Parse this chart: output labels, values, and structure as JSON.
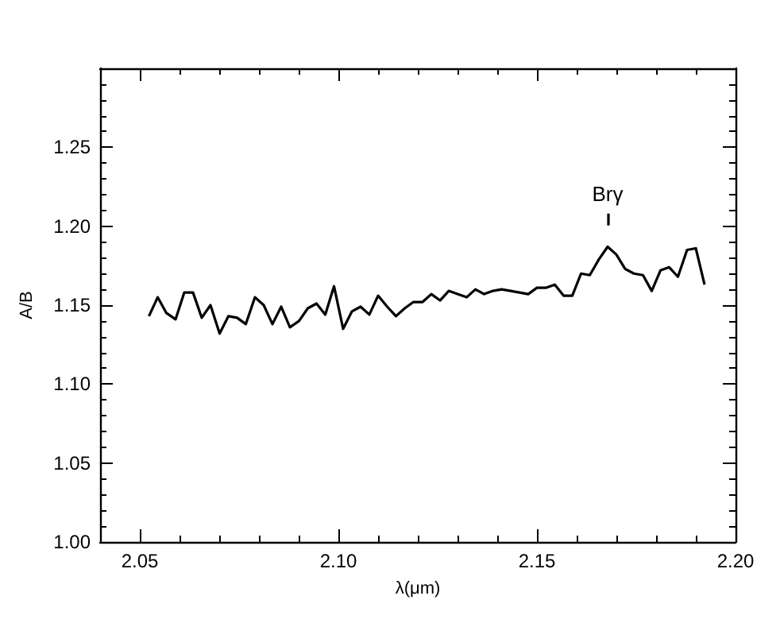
{
  "chart_data": {
    "type": "line",
    "xlabel": "λ(μm)",
    "ylabel": "A/B",
    "xlim": [
      2.04,
      2.2
    ],
    "ylim": [
      1.0,
      1.3
    ],
    "xticks": [
      {
        "value": 2.04,
        "label": null
      },
      2.05,
      {
        "value": 2.06,
        "label": null
      },
      {
        "value": 2.07,
        "label": null
      },
      {
        "value": 2.08,
        "label": null
      },
      {
        "value": 2.09,
        "label": null
      },
      "2.10",
      {
        "value": 2.11,
        "label": null
      },
      {
        "value": 2.12,
        "label": null
      },
      {
        "value": 2.13,
        "label": null
      },
      {
        "value": 2.14,
        "label": null
      },
      2.15,
      {
        "value": 2.16,
        "label": null
      },
      {
        "value": 2.17,
        "label": null
      },
      {
        "value": 2.18,
        "label": null
      },
      {
        "value": 2.19,
        "label": null
      },
      "2.20"
    ],
    "yticks": [
      "1.00",
      {
        "value": 1.01,
        "label": null
      },
      {
        "value": 1.02,
        "label": null
      },
      {
        "value": 1.03,
        "label": null
      },
      {
        "value": 1.04,
        "label": null
      },
      1.05,
      {
        "value": 1.06,
        "label": null
      },
      {
        "value": 1.07,
        "label": null
      },
      {
        "value": 1.08,
        "label": null
      },
      {
        "value": 1.09,
        "label": null
      },
      "1.10",
      {
        "value": 1.11,
        "label": null
      },
      {
        "value": 1.12,
        "label": null
      },
      {
        "value": 1.13,
        "label": null
      },
      {
        "value": 1.14,
        "label": null
      },
      1.15,
      {
        "value": 1.16,
        "label": null
      },
      {
        "value": 1.17,
        "label": null
      },
      {
        "value": 1.18,
        "label": null
      },
      {
        "value": 1.19,
        "label": null
      },
      "1.20",
      {
        "value": 1.21,
        "label": null
      },
      {
        "value": 1.22,
        "label": null
      },
      {
        "value": 1.23,
        "label": null
      },
      {
        "value": 1.24,
        "label": null
      },
      1.25,
      {
        "value": 1.26,
        "label": null
      },
      {
        "value": 1.27,
        "label": null
      },
      {
        "value": 1.28,
        "label": null
      },
      {
        "value": 1.29,
        "label": null
      }
    ],
    "annotations": [
      "Brγ"
    ],
    "series": [
      {
        "color": "#000000",
        "x": [
          2.0523,
          2.0545,
          2.0567,
          2.059,
          2.0612,
          2.0634,
          2.0656,
          2.0678,
          2.0701,
          2.0723,
          2.0745,
          2.0767,
          2.079,
          2.0812,
          2.0834,
          2.0856,
          2.0878,
          2.0901,
          2.0923,
          2.0945,
          2.0967,
          2.0989,
          2.1012,
          2.1034,
          2.1056,
          2.1078,
          2.11,
          2.1123,
          2.1145,
          2.1167,
          2.1189,
          2.1212,
          2.1234,
          2.1256,
          2.1278,
          2.13,
          2.1323,
          2.1345,
          2.1367,
          2.1389,
          2.1411,
          2.1434,
          2.1456,
          2.1478,
          2.15,
          2.1522,
          2.1545,
          2.1567,
          2.1589,
          2.1611,
          2.1633,
          2.1656,
          2.1678,
          2.17,
          2.1722,
          2.1744,
          2.1767,
          2.1789,
          2.1811,
          2.1833,
          2.1855,
          2.1878,
          2.19,
          2.1922
        ],
        "values": [
          1.143,
          1.155,
          1.145,
          1.141,
          1.158,
          1.158,
          1.142,
          1.15,
          1.132,
          1.143,
          1.142,
          1.138,
          1.155,
          1.15,
          1.138,
          1.149,
          1.136,
          1.14,
          1.148,
          1.151,
          1.144,
          1.162,
          1.135,
          1.146,
          1.149,
          1.144,
          1.156,
          1.149,
          1.143,
          1.148,
          1.152,
          1.152,
          1.157,
          1.153,
          1.159,
          1.157,
          1.155,
          1.16,
          1.157,
          1.159,
          1.16,
          1.159,
          1.158,
          1.157,
          1.161,
          1.161,
          1.163,
          1.156,
          1.156,
          1.17,
          1.169,
          1.179,
          1.187,
          1.182,
          1.173,
          1.17,
          1.169,
          1.159,
          1.172,
          1.174,
          1.168,
          1.185,
          1.186,
          1.163
        ]
      }
    ]
  }
}
